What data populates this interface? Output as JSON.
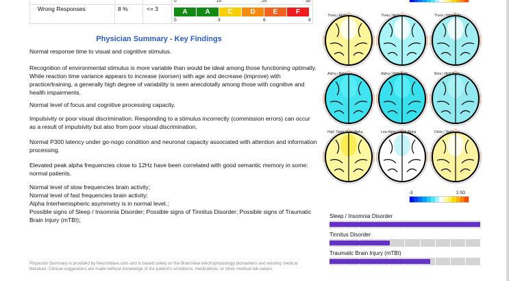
{
  "table": {
    "row": {
      "label": "Wrong Responses",
      "value": "8 %",
      "norm": "<= 3"
    },
    "top_ticks": [
      "0",
      "10",
      "20",
      "30"
    ],
    "bottom_ticks": [
      "0",
      "3",
      "6",
      "9"
    ],
    "grades": [
      {
        "g": "A",
        "c": "#138a13"
      },
      {
        "g": "A",
        "c": "#138a13"
      },
      {
        "g": "C",
        "c": "#f6cf0a"
      },
      {
        "g": "D",
        "c": "#f78a0a"
      },
      {
        "g": "E",
        "c": "#f0621e"
      },
      {
        "g": "F",
        "c": "#ee1c1c"
      }
    ],
    "current_grade": "F"
  },
  "summary": {
    "title": "Physician Summary - Key Findings",
    "paragraphs": [
      "Normal response time to visual and cognitive stimulus.",
      "Recognition of environmental stimulus is more variable than would be ideal among those functioning optimally. While reaction time variance appears to increase (worsen) with age and decrease (improve) with practice/training, a generally high degree of variability is seen anecdotally among those with cognitive and health impairments.",
      "Normal level of focus and cognitive processing capacity.",
      "Impulsivity or poor visual discrimination. Responding to a stimulus incorrectly (commission errors) can occur as a result of impulsivity but also from poor visual discrimination.",
      "Normal P300 latency under go-nogo condition and neuronal capacity associated with attention and information processing.",
      "Elevated peak alpha frequencies close to 12Hz have been correlated with good semantic memory in some: normal patients.",
      "Normal level of slow frequencies brain activity;\nNormal level of fast frequencies brain activity;\nAlpha Interhemispheric asymmetry is in normal level.;\nPossible signs of Sleep / Insomnia Disorder; Possible signs of Tinnitus Disorder; Possible signs of Traumatic Brain Injury (mTBI);"
    ],
    "footer": "Physician Summary is provided by NeuroWave.com and is based solely on the BrainView electrophysiology biomarkers and existing medical literature. Clinical suggestions are made without knowledge of the patient's conditions, medications, or other medical lab values."
  },
  "brain_maps": [
    {
      "label": "Theta / Alpha",
      "base": "#fdf59a",
      "accent": "#ffffff"
    },
    {
      "label": "Theta / Beta",
      "base": "#a8f4f6",
      "accent": "#ffffff"
    },
    {
      "label": "Theta / High Beta",
      "base": "#a0eef2",
      "accent": "#ffffff"
    },
    {
      "label": "Alpha / Beta",
      "base": "#40e4f0",
      "accent": "#5aeef6"
    },
    {
      "label": "Alpha / High Beta",
      "base": "#38e0ee",
      "accent": "#5cf0f8"
    },
    {
      "label": "Beta / High Beta",
      "base": "#90eaf0",
      "accent": "#b0f4f6"
    },
    {
      "label": "High Theta / Low Alpha",
      "base": "#fdf7a0",
      "accent": "#fbe840"
    },
    {
      "label": "Low Alpha / High Alpha",
      "base": "#ffffff",
      "accent": "#b6f2f6"
    },
    {
      "label": "Delta / Theta",
      "base": "#fbf3a0",
      "accent": "#ffffff"
    }
  ],
  "colorbar": {
    "min_label": "-3",
    "max_label": "3 SD",
    "colors": [
      "#0010f0",
      "#0040f8",
      "#0070fc",
      "#00a0fc",
      "#20c8fc",
      "#50e4fc",
      "#a0f4fc",
      "#ffffff",
      "#fffcb0",
      "#fff060",
      "#ffd800",
      "#ffb000",
      "#ff8000",
      "#ff4800"
    ]
  },
  "disorders": [
    {
      "label": "Sleep / Insomnia Disorder",
      "level_percent": 100
    },
    {
      "label": "Tinnitus Disorder",
      "level_percent": 40
    },
    {
      "label": "Traumatic Brain Injury (mTBI)",
      "level_percent": 67
    }
  ]
}
